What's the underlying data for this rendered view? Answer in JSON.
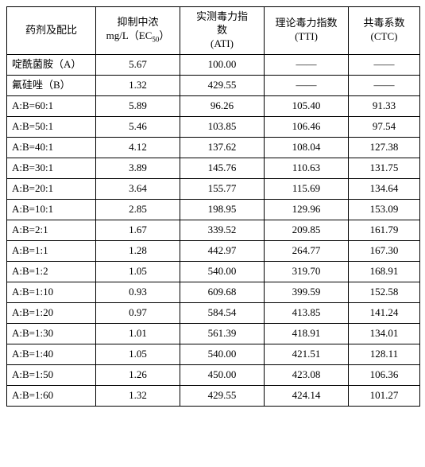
{
  "table": {
    "headers": [
      "药剂及配比",
      "抑制中浓\nmg/L（EC₅₀）",
      "实测毒力指\n数\n(ATI)",
      "理论毒力指数\n(TTI)",
      "共毒系数\n(CTC)"
    ],
    "rows": [
      {
        "label": "啶酰菌胺（A）",
        "ec50": "5.67",
        "ati": "100.00",
        "tti": "——",
        "ctc": "——"
      },
      {
        "label": "氟硅唑（B）",
        "ec50": "1.32",
        "ati": "429.55",
        "tti": "——",
        "ctc": "——"
      },
      {
        "label": "A:B=60:1",
        "ec50": "5.89",
        "ati": "96.26",
        "tti": "105.40",
        "ctc": "91.33"
      },
      {
        "label": "A:B=50:1",
        "ec50": "5.46",
        "ati": "103.85",
        "tti": "106.46",
        "ctc": "97.54"
      },
      {
        "label": "A:B=40:1",
        "ec50": "4.12",
        "ati": "137.62",
        "tti": "108.04",
        "ctc": "127.38"
      },
      {
        "label": "A:B=30:1",
        "ec50": "3.89",
        "ati": "145.76",
        "tti": "110.63",
        "ctc": "131.75"
      },
      {
        "label": "A:B=20:1",
        "ec50": "3.64",
        "ati": "155.77",
        "tti": "115.69",
        "ctc": "134.64"
      },
      {
        "label": "A:B=10:1",
        "ec50": "2.85",
        "ati": "198.95",
        "tti": "129.96",
        "ctc": "153.09"
      },
      {
        "label": "A:B=2:1",
        "ec50": "1.67",
        "ati": "339.52",
        "tti": "209.85",
        "ctc": "161.79"
      },
      {
        "label": "A:B=1:1",
        "ec50": "1.28",
        "ati": "442.97",
        "tti": "264.77",
        "ctc": "167.30"
      },
      {
        "label": "A:B=1:2",
        "ec50": "1.05",
        "ati": "540.00",
        "tti": "319.70",
        "ctc": "168.91"
      },
      {
        "label": "A:B=1:10",
        "ec50": "0.93",
        "ati": "609.68",
        "tti": "399.59",
        "ctc": "152.58"
      },
      {
        "label": "A:B=1:20",
        "ec50": "0.97",
        "ati": "584.54",
        "tti": "413.85",
        "ctc": "141.24"
      },
      {
        "label": "A:B=1:30",
        "ec50": "1.01",
        "ati": "561.39",
        "tti": "418.91",
        "ctc": "134.01"
      },
      {
        "label": "A:B=1:40",
        "ec50": "1.05",
        "ati": "540.00",
        "tti": "421.51",
        "ctc": "128.11"
      },
      {
        "label": "A:B=1:50",
        "ec50": "1.26",
        "ati": "450.00",
        "tti": "423.08",
        "ctc": "106.36"
      },
      {
        "label": "A:B=1:60",
        "ec50": "1.32",
        "ati": "429.55",
        "tti": "424.14",
        "ctc": "101.27"
      }
    ]
  }
}
